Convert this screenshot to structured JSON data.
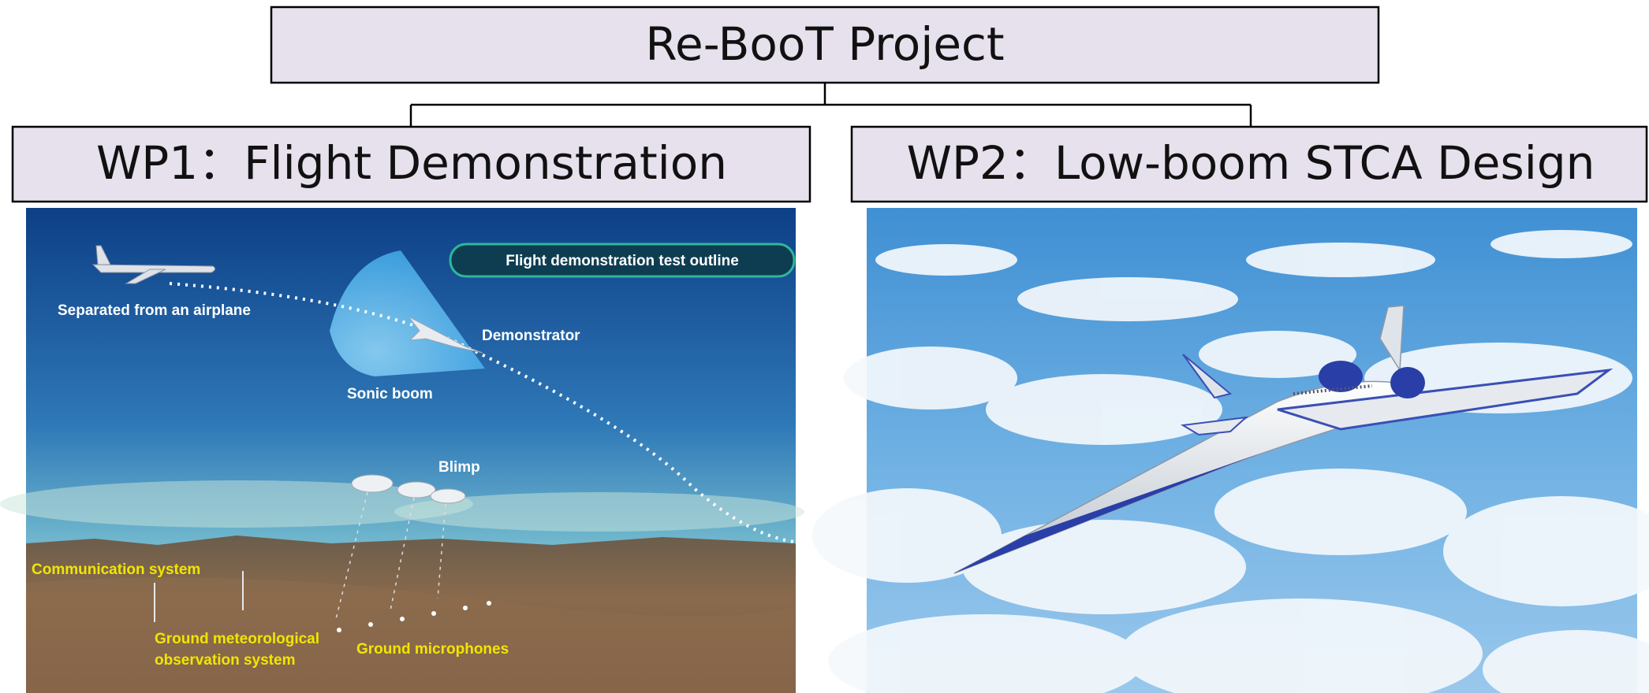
{
  "header": {
    "title": "Re-BooT Project"
  },
  "work_packages": [
    {
      "title": "WP1：Flight Demonstration"
    },
    {
      "title": "WP2：Low-boom STCA Design"
    }
  ],
  "illustration": {
    "heading": "Flight demonstration test outline",
    "separated": "Separated from an airplane",
    "demonstrator": "Demonstrator",
    "sonic_boom": "Sonic boom",
    "blimp": "Blimp",
    "communication": "Communication system",
    "meteorological": [
      "Ground meteorological",
      "observation system"
    ],
    "microphones": "Ground microphones"
  }
}
